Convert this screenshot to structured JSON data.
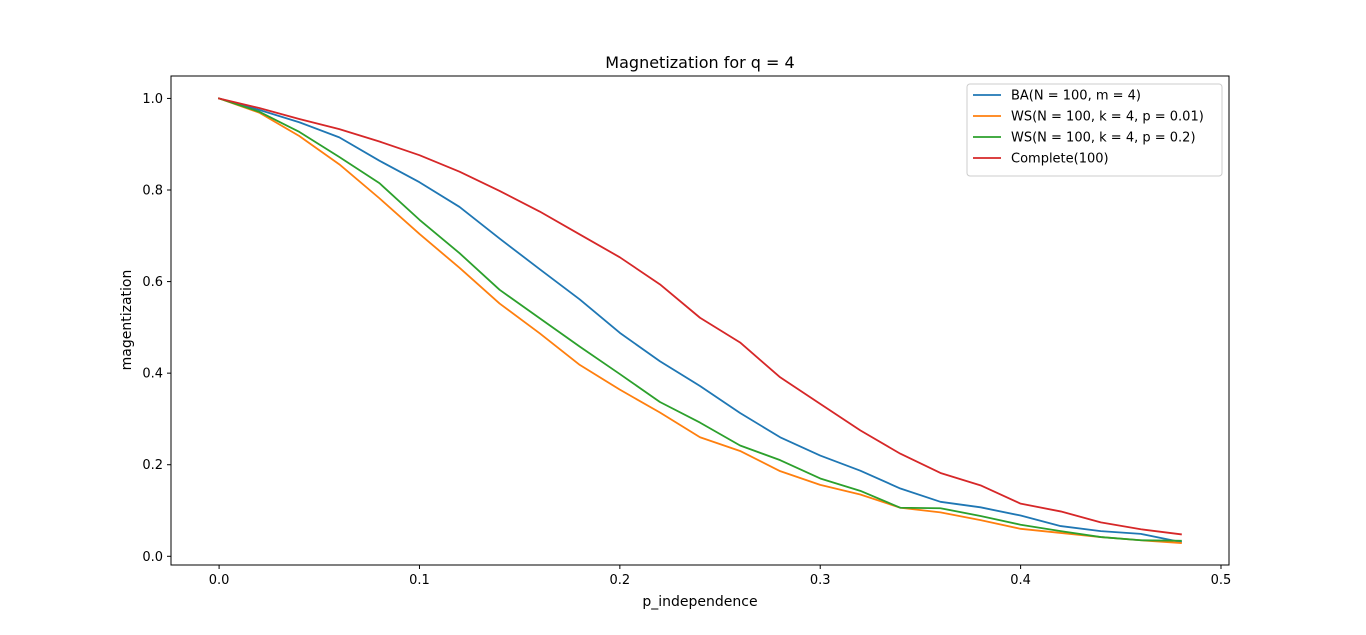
{
  "chart_data": {
    "type": "line",
    "title": "Magnetization for q = 4",
    "xlabel": "p_independence",
    "ylabel": "magentization",
    "xlim": [
      -0.024,
      0.504
    ],
    "ylim": [
      -0.019,
      1.049
    ],
    "xticks": [
      0.0,
      0.1,
      0.2,
      0.3,
      0.4,
      0.5
    ],
    "xtick_labels": [
      "0.0",
      "0.1",
      "0.2",
      "0.3",
      "0.4",
      "0.5"
    ],
    "yticks": [
      0.0,
      0.2,
      0.4,
      0.6,
      0.8,
      1.0
    ],
    "ytick_labels": [
      "0.0",
      "0.2",
      "0.4",
      "0.6",
      "0.8",
      "1.0"
    ],
    "grid": false,
    "legend_position": "top-right",
    "x": [
      0.0,
      0.02,
      0.04,
      0.06,
      0.08,
      0.1,
      0.12,
      0.14,
      0.16,
      0.18,
      0.2,
      0.22,
      0.24,
      0.26,
      0.28,
      0.3,
      0.32,
      0.34,
      0.36,
      0.38,
      0.4,
      0.42,
      0.44,
      0.46,
      0.48
    ],
    "series": [
      {
        "name": "BA(N = 100, m = 4)",
        "color": "#1f77b4",
        "values": [
          1.0,
          0.975,
          0.948,
          0.915,
          0.864,
          0.817,
          0.763,
          0.694,
          0.627,
          0.561,
          0.488,
          0.426,
          0.372,
          0.313,
          0.26,
          0.22,
          0.187,
          0.148,
          0.119,
          0.107,
          0.089,
          0.066,
          0.055,
          0.049,
          0.031
        ]
      },
      {
        "name": "WS(N = 100, k = 4, p = 0.01)",
        "color": "#ff7f0e",
        "values": [
          1.0,
          0.969,
          0.918,
          0.856,
          0.782,
          0.704,
          0.63,
          0.552,
          0.487,
          0.418,
          0.364,
          0.314,
          0.26,
          0.23,
          0.186,
          0.156,
          0.135,
          0.106,
          0.096,
          0.079,
          0.06,
          0.051,
          0.042,
          0.035,
          0.029
        ]
      },
      {
        "name": "WS(N = 100, k = 4, p = 0.2)",
        "color": "#2ca02c",
        "values": [
          1.0,
          0.971,
          0.927,
          0.872,
          0.815,
          0.735,
          0.662,
          0.582,
          0.52,
          0.458,
          0.398,
          0.337,
          0.292,
          0.242,
          0.21,
          0.17,
          0.143,
          0.106,
          0.105,
          0.088,
          0.069,
          0.055,
          0.042,
          0.035,
          0.034
        ]
      },
      {
        "name": "Complete(100)",
        "color": "#d62728",
        "values": [
          1.0,
          0.979,
          0.955,
          0.933,
          0.906,
          0.876,
          0.84,
          0.798,
          0.753,
          0.703,
          0.653,
          0.594,
          0.521,
          0.467,
          0.391,
          0.333,
          0.275,
          0.224,
          0.182,
          0.155,
          0.115,
          0.098,
          0.074,
          0.059,
          0.048
        ]
      }
    ]
  }
}
